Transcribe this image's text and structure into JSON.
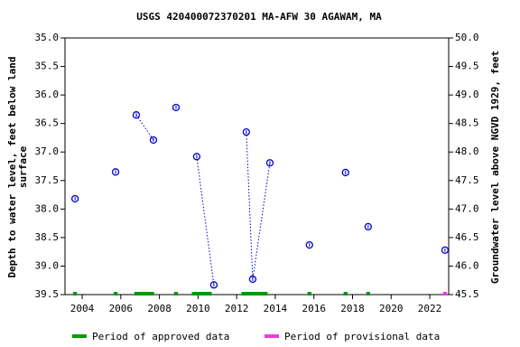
{
  "chart_data": {
    "type": "scatter",
    "title": "USGS 420400072370201 MA-AFW 30 AGAWAM, MA",
    "y_label": [
      "Depth to water level, feet below land",
      "surface"
    ],
    "y2_label": "Groundwater level above NGVD 1929, feet",
    "x": [
      2003.63,
      null,
      2005.73,
      null,
      2006.8,
      2007.69,
      null,
      2008.86,
      null,
      2009.93,
      2010.82,
      null,
      2012.5,
      2012.83,
      2013.72,
      null,
      2015.77,
      null,
      2017.64,
      null,
      2018.81,
      null,
      2022.79
    ],
    "values": [
      37.82,
      null,
      37.35,
      null,
      36.35,
      36.79,
      null,
      36.22,
      null,
      37.08,
      39.33,
      null,
      36.65,
      39.23,
      37.19,
      null,
      38.63,
      null,
      37.36,
      null,
      38.31,
      null,
      38.72
    ],
    "marker_color": "#0000cc",
    "line_style": "dotted",
    "xlim": [
      2003.11,
      2022.98
    ],
    "xticks": [
      2004,
      2006,
      2008,
      2010,
      2012,
      2014,
      2016,
      2018,
      2020,
      2022
    ],
    "ylim": [
      35,
      39.5
    ],
    "yticks": [
      {
        "value": 35,
        "label": "35.0"
      },
      {
        "value": 35.5,
        "label": "35.5"
      },
      {
        "value": 36,
        "label": "36.0"
      },
      {
        "value": 36.5,
        "label": "36.5"
      },
      {
        "value": 37,
        "label": "37.0"
      },
      {
        "value": 37.5,
        "label": "37.5"
      },
      {
        "value": 38,
        "label": "38.0"
      },
      {
        "value": 38.5,
        "label": "38.5"
      },
      {
        "value": 39,
        "label": "39.0"
      },
      {
        "value": 39.5,
        "label": "39.5"
      }
    ],
    "y2lim": [
      50,
      45.5
    ],
    "y2ticks": [
      {
        "value": 50,
        "label": "50.0"
      },
      {
        "value": 49.5,
        "label": "49.5"
      },
      {
        "value": 49,
        "label": "49.0"
      },
      {
        "value": 48.5,
        "label": "48.5"
      },
      {
        "value": 48,
        "label": "48.0"
      },
      {
        "value": 47.5,
        "label": "47.5"
      },
      {
        "value": 47,
        "label": "47.0"
      },
      {
        "value": 46.5,
        "label": "46.5"
      },
      {
        "value": 46,
        "label": "46.0"
      },
      {
        "value": 45.5,
        "label": "45.5"
      }
    ],
    "periods": [
      {
        "name": "Period of approved data",
        "color": "#009900",
        "ranges": [
          [
            2003.53,
            2003.73
          ],
          [
            2005.63,
            2005.83
          ],
          [
            2006.7,
            2007.72
          ],
          [
            2008.76,
            2008.96
          ],
          [
            2009.68,
            2010.71
          ],
          [
            2012.25,
            2013.6
          ],
          [
            2015.67,
            2015.87
          ],
          [
            2017.54,
            2017.74
          ],
          [
            2018.71,
            2018.91
          ]
        ]
      },
      {
        "name": "Period of provisional data",
        "color": "#e040e0",
        "ranges": [
          [
            2022.69,
            2022.89
          ]
        ]
      }
    ]
  }
}
